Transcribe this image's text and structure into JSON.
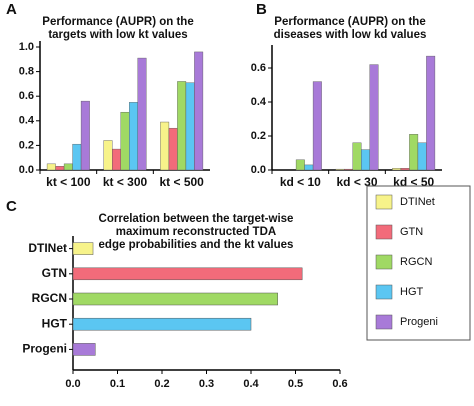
{
  "chart_data": [
    {
      "type": "grouped-bar",
      "panel": "A",
      "title": [
        "Performance (AUPR) on the",
        "targets with low kt values"
      ],
      "categories": [
        "kt < 100",
        "kt < 300",
        "kt < 500"
      ],
      "series": [
        {
          "name": "DTINet",
          "color": "#f7f38a",
          "values": [
            0.05,
            0.24,
            0.39
          ]
        },
        {
          "name": "GTN",
          "color": "#f26b7a",
          "values": [
            0.03,
            0.17,
            0.34
          ]
        },
        {
          "name": "RGCN",
          "color": "#a0d964",
          "values": [
            0.05,
            0.47,
            0.72
          ]
        },
        {
          "name": "HGT",
          "color": "#5bc6f2",
          "values": [
            0.21,
            0.55,
            0.71
          ]
        },
        {
          "name": "Progeni",
          "color": "#a87ad8",
          "values": [
            0.56,
            0.91,
            0.96
          ]
        }
      ],
      "ylim": [
        0,
        1
      ],
      "yticks": [
        {
          "value": 0,
          "label": "0.0"
        },
        0.2,
        0.4,
        0.6,
        0.8,
        {
          "value": 1,
          "label": "1.0"
        }
      ]
    },
    {
      "type": "grouped-bar",
      "panel": "B",
      "title": [
        "Performance (AUPR) on the",
        "diseases with low kd values"
      ],
      "categories": [
        "kd < 10",
        "kd < 30",
        "kd < 50"
      ],
      "series": [
        {
          "name": "DTINet",
          "color": "#f7f38a",
          "values": [
            0.0,
            0.005,
            0.01
          ]
        },
        {
          "name": "GTN",
          "color": "#f26b7a",
          "values": [
            0.0,
            0.005,
            0.01
          ]
        },
        {
          "name": "RGCN",
          "color": "#a0d964",
          "values": [
            0.06,
            0.16,
            0.21
          ]
        },
        {
          "name": "HGT",
          "color": "#5bc6f2",
          "values": [
            0.03,
            0.12,
            0.16
          ]
        },
        {
          "name": "Progeni",
          "color": "#a87ad8",
          "values": [
            0.52,
            0.62,
            0.67
          ]
        }
      ],
      "ylim": [
        0,
        0.7
      ],
      "yticks": [
        {
          "value": 0,
          "label": "0.0"
        },
        0.2,
        0.4,
        0.6
      ]
    },
    {
      "type": "hbar",
      "panel": "C",
      "title": [
        "Correlation between the target-wise",
        "maximum reconstructed TDA",
        "edge probabilities and the kt values"
      ],
      "categories": [
        "DTINet",
        "GTN",
        "RGCN",
        "HGT",
        "Progeni"
      ],
      "values": [
        0.045,
        0.515,
        0.46,
        0.4,
        0.05
      ],
      "colors": [
        "#f7f38a",
        "#f26b7a",
        "#a0d964",
        "#5bc6f2",
        "#a87ad8"
      ],
      "xlim": [
        0,
        0.6
      ],
      "xticks": [
        {
          "value": 0,
          "label": "0.0"
        },
        0.1,
        0.2,
        0.3,
        0.4,
        0.5,
        0.6
      ]
    }
  ]
}
